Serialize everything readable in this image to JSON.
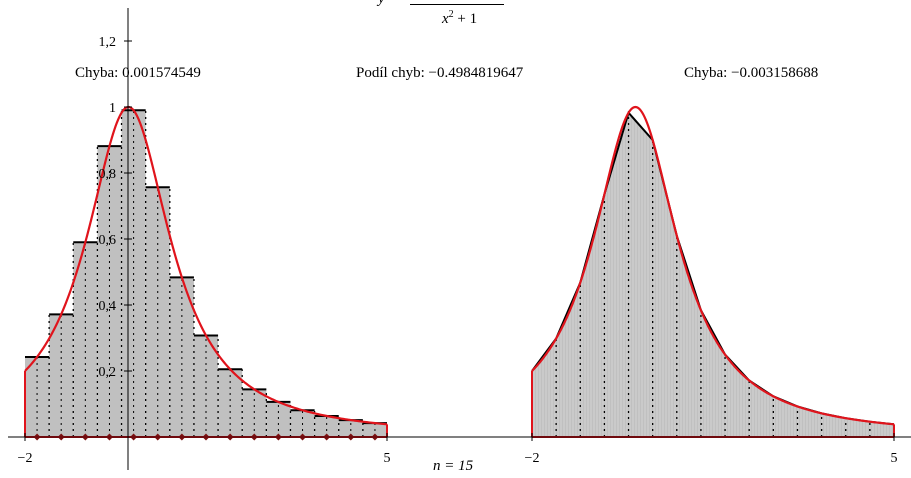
{
  "function_label": {
    "y": "y",
    "equals": "=",
    "den_var": "x",
    "den_exp": "2",
    "den_rest": "+ 1"
  },
  "captions": {
    "error_left": "Chyba: 0.001574549",
    "error_ratio": "Podíl chyb: −0.4984819647",
    "error_right": "Chyba: −0.003158688",
    "n_label": "n = 15"
  },
  "colors": {
    "curve": "#e0141c",
    "fill": "#c0c0c0",
    "fill_stripe": "#d4d4d4",
    "steps": "#000000",
    "markers": "#7a1010"
  },
  "chart_data": [
    {
      "type": "area",
      "method": "midpoint rectangles",
      "x_range": [
        -2,
        5
      ],
      "ylim": [
        0,
        1.3
      ],
      "y_ticks": [
        "0,2",
        "0,4",
        "0,6",
        "0,8",
        "1",
        "1,2"
      ],
      "x_ticks": [
        "−2",
        "5"
      ],
      "n": 15,
      "x_midpoints": [
        -1.7667,
        -1.3,
        -0.8333,
        -0.3667,
        0.1,
        0.5667,
        1.0333,
        1.5,
        1.9667,
        2.4333,
        2.9,
        3.3667,
        3.8333,
        4.3,
        4.7667
      ],
      "rect_heights": [
        0.2426,
        0.3717,
        0.5902,
        0.8815,
        0.9901,
        0.7569,
        0.4836,
        0.3077,
        0.2054,
        0.1445,
        0.1063,
        0.0811,
        0.0637,
        0.0513,
        0.0422
      ],
      "curve": "1/(x^2+1)",
      "caption": "Chyba: 0.001574549"
    },
    {
      "type": "area",
      "method": "trapezoid",
      "x_range": [
        -2,
        5
      ],
      "ylim": [
        0,
        1.3
      ],
      "x_ticks": [
        "−2",
        "5"
      ],
      "n": 15,
      "x_nodes": [
        -2,
        -1.5333,
        -1.0667,
        -0.6,
        -0.1333,
        0.3333,
        0.8,
        1.2667,
        1.7333,
        2.2,
        2.6667,
        3.1333,
        3.6,
        4.0667,
        4.5333,
        5
      ],
      "node_values": [
        0.2,
        0.2984,
        0.4678,
        0.7353,
        0.9825,
        0.9,
        0.6098,
        0.384,
        0.2498,
        0.1712,
        0.1233,
        0.0925,
        0.0716,
        0.057,
        0.0464,
        0.0385
      ],
      "curve": "1/(x^2+1)",
      "caption": "Chyba: −0.003158688"
    }
  ]
}
